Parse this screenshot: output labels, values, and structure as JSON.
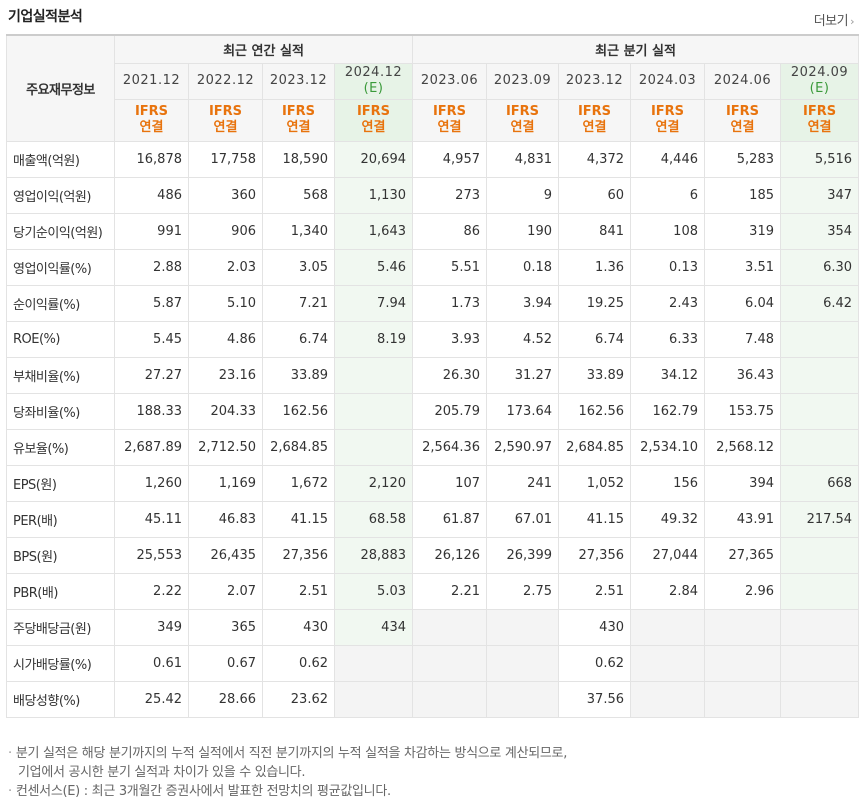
{
  "header": {
    "title": "기업실적분석",
    "more_label": "더보기"
  },
  "table": {
    "corner_label": "주요재무정보",
    "group_annual": "최근 연간 실적",
    "group_quarter": "최근 분기 실적",
    "periods": [
      {
        "label": "2021.12",
        "estimate": false
      },
      {
        "label": "2022.12",
        "estimate": false
      },
      {
        "label": "2023.12",
        "estimate": false
      },
      {
        "label": "2024.12",
        "estimate": true
      },
      {
        "label": "2023.06",
        "estimate": false
      },
      {
        "label": "2023.09",
        "estimate": false
      },
      {
        "label": "2023.12",
        "estimate": false
      },
      {
        "label": "2024.03",
        "estimate": false
      },
      {
        "label": "2024.06",
        "estimate": false
      },
      {
        "label": "2024.09",
        "estimate": true
      }
    ],
    "estimate_mark": "(E)",
    "ifrs_line1": "IFRS",
    "ifrs_line2": "연결",
    "rows": [
      {
        "label": "매출액(억원)",
        "values": [
          "16,878",
          "17,758",
          "18,590",
          "20,694",
          "4,957",
          "4,831",
          "4,372",
          "4,446",
          "5,283",
          "5,516"
        ],
        "sep": false
      },
      {
        "label": "영업이익(억원)",
        "values": [
          "486",
          "360",
          "568",
          "1,130",
          "273",
          "9",
          "60",
          "6",
          "185",
          "347"
        ],
        "sep": false
      },
      {
        "label": "당기순이익(억원)",
        "values": [
          "991",
          "906",
          "1,340",
          "1,643",
          "86",
          "190",
          "841",
          "108",
          "319",
          "354"
        ],
        "sep": false
      },
      {
        "label": "영업이익률(%)",
        "values": [
          "2.88",
          "2.03",
          "3.05",
          "5.46",
          "5.51",
          "0.18",
          "1.36",
          "0.13",
          "3.51",
          "6.30"
        ],
        "sep": true
      },
      {
        "label": "순이익률(%)",
        "values": [
          "5.87",
          "5.10",
          "7.21",
          "7.94",
          "1.73",
          "3.94",
          "19.25",
          "2.43",
          "6.04",
          "6.42"
        ],
        "sep": false
      },
      {
        "label": "ROE(%)",
        "values": [
          "5.45",
          "4.86",
          "6.74",
          "8.19",
          "3.93",
          "4.52",
          "6.74",
          "6.33",
          "7.48",
          ""
        ],
        "sep": false
      },
      {
        "label": "부채비율(%)",
        "values": [
          "27.27",
          "23.16",
          "33.89",
          "",
          "26.30",
          "31.27",
          "33.89",
          "34.12",
          "36.43",
          ""
        ],
        "sep": true
      },
      {
        "label": "당좌비율(%)",
        "values": [
          "188.33",
          "204.33",
          "162.56",
          "",
          "205.79",
          "173.64",
          "162.56",
          "162.79",
          "153.75",
          ""
        ],
        "sep": false
      },
      {
        "label": "유보율(%)",
        "values": [
          "2,687.89",
          "2,712.50",
          "2,684.85",
          "",
          "2,564.36",
          "2,590.97",
          "2,684.85",
          "2,534.10",
          "2,568.12",
          ""
        ],
        "sep": false
      },
      {
        "label": "EPS(원)",
        "values": [
          "1,260",
          "1,169",
          "1,672",
          "2,120",
          "107",
          "241",
          "1,052",
          "156",
          "394",
          "668"
        ],
        "sep": true
      },
      {
        "label": "PER(배)",
        "values": [
          "45.11",
          "46.83",
          "41.15",
          "68.58",
          "61.87",
          "67.01",
          "41.15",
          "49.32",
          "43.91",
          "217.54"
        ],
        "sep": false
      },
      {
        "label": "BPS(원)",
        "values": [
          "25,553",
          "26,435",
          "27,356",
          "28,883",
          "26,126",
          "26,399",
          "27,356",
          "27,044",
          "27,365",
          ""
        ],
        "sep": false
      },
      {
        "label": "PBR(배)",
        "values": [
          "2.22",
          "2.07",
          "2.51",
          "5.03",
          "2.21",
          "2.75",
          "2.51",
          "2.84",
          "2.96",
          ""
        ],
        "sep": false
      },
      {
        "label": "주당배당금(원)",
        "values": [
          "349",
          "365",
          "430",
          "434",
          "",
          "",
          "430",
          "",
          "",
          ""
        ],
        "sep": true,
        "gray": true
      },
      {
        "label": "시가배당률(%)",
        "values": [
          "0.61",
          "0.67",
          "0.62",
          "",
          "",
          "",
          "0.62",
          "",
          "",
          ""
        ],
        "sep": false,
        "gray": true
      },
      {
        "label": "배당성향(%)",
        "values": [
          "25.42",
          "28.66",
          "23.62",
          "",
          "",
          "",
          "37.56",
          "",
          "",
          ""
        ],
        "sep": false,
        "gray": true
      }
    ]
  },
  "notes": {
    "line1": "분기 실적은 해당 분기까지의 누적 실적에서 직전 분기까지의 누적 실적을 차감하는 방식으로 계산되므로,",
    "line2": "기업에서 공시한 분기 실적과 차이가 있을 수 있습니다.",
    "line3": "컨센서스(E) : 최근 3개월간 증권사에서 발표한 전망치의 평균값입니다."
  },
  "colors": {
    "ifrs": "#e8730d",
    "estimate_bg": "#f1f8f1",
    "estimate_mark": "#3a9a3a"
  }
}
